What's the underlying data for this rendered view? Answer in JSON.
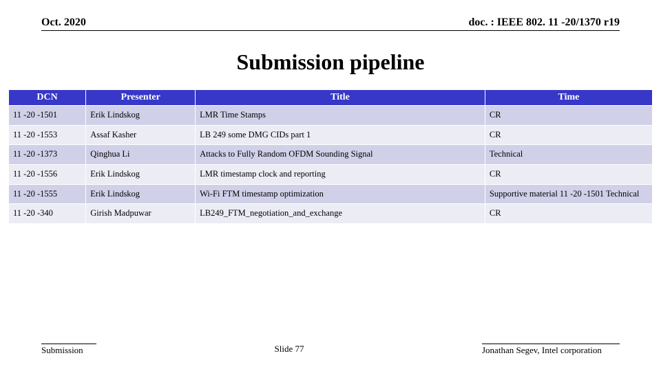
{
  "header": {
    "left": "Oct. 2020",
    "right": "doc. : IEEE 802. 11 -20/1370 r19"
  },
  "title": "Submission pipeline",
  "table": {
    "col_widths_pct": [
      12,
      17,
      45,
      26
    ],
    "header_bg": "#3737c8",
    "header_fg": "#ffffff",
    "row_odd_bg": "#d0d0e8",
    "row_even_bg": "#ececf5",
    "columns": [
      "DCN",
      "Presenter",
      "Title",
      "Time"
    ],
    "rows": [
      [
        "11 -20 -1501",
        "Erik Lindskog",
        "LMR Time Stamps",
        "CR"
      ],
      [
        "11 -20 -1553",
        "Assaf Kasher",
        "LB 249 some DMG CIDs part 1",
        "CR"
      ],
      [
        "11 -20 -1373",
        "Qinghua Li",
        "Attacks to Fully Random OFDM Sounding Signal",
        "Technical"
      ],
      [
        "11 -20 -1556",
        "Erik Lindskog",
        "LMR timestamp clock and reporting",
        "CR"
      ],
      [
        "11 -20 -1555",
        "Erik Lindskog",
        "Wi-Fi FTM timestamp optimization",
        "Supportive material 11 -20 -1501 Technical"
      ],
      [
        "11 -20 -340",
        "Girish Madpuwar",
        "LB249_FTM_negotiation_and_exchange",
        "CR"
      ]
    ]
  },
  "footer": {
    "left": "Submission",
    "center": "Slide 77",
    "right": "Jonathan Segev, Intel corporation"
  }
}
